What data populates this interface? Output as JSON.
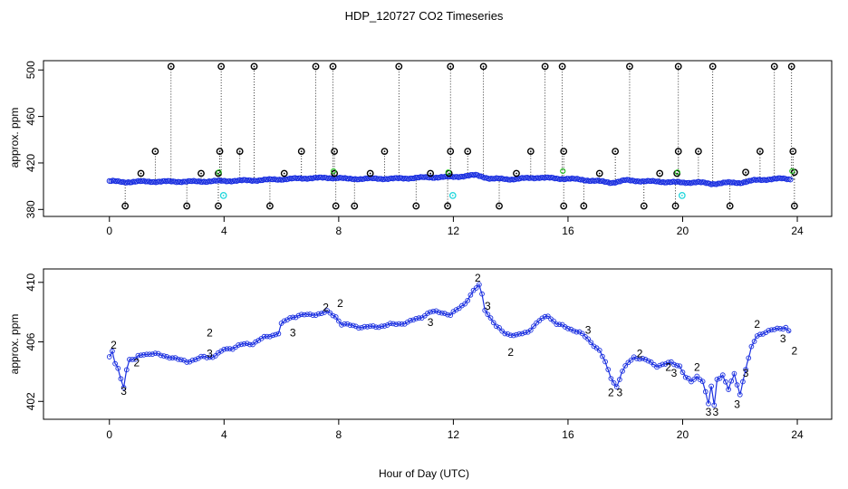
{
  "chart_data": [
    {
      "type": "scatter",
      "panel": "top",
      "title": "HDP_120727  CO2 Timeseries",
      "xlabel": "",
      "ylabel": "approx. ppm",
      "xlim": [
        -2.3,
        25.2
      ],
      "ylim": [
        374,
        508
      ],
      "xticks": [
        0,
        4,
        8,
        12,
        16,
        20,
        24
      ],
      "yticks": [
        380,
        420,
        460,
        500
      ],
      "ytick_labels": [
        "380",
        "420",
        "460",
        "500"
      ],
      "colors": {
        "series": "#1a2fe0",
        "high": "#000000",
        "low": "#000000",
        "cyan": "#22d6dc",
        "green": "#22c81e"
      },
      "baseline": [
        [
          0,
          404.5
        ],
        [
          0.5,
          403.5
        ],
        [
          1,
          404
        ],
        [
          2,
          404
        ],
        [
          3,
          404
        ],
        [
          4,
          404.5
        ],
        [
          5,
          405
        ],
        [
          6,
          406
        ],
        [
          7,
          407
        ],
        [
          8,
          407.2
        ],
        [
          8.3,
          406.2
        ],
        [
          9,
          406.5
        ],
        [
          10,
          406.5
        ],
        [
          11,
          407.5
        ],
        [
          12,
          408
        ],
        [
          12.8,
          409.5
        ],
        [
          13.3,
          406.5
        ],
        [
          14,
          406
        ],
        [
          15,
          407.5
        ],
        [
          15.7,
          406.5
        ],
        [
          16,
          406.5
        ],
        [
          17,
          404.5
        ],
        [
          17.5,
          403
        ],
        [
          18,
          405
        ],
        [
          19,
          404
        ],
        [
          19.7,
          403.5
        ],
        [
          20,
          403
        ],
        [
          20.5,
          403.5
        ],
        [
          21,
          402
        ],
        [
          21.5,
          403
        ],
        [
          22,
          403
        ],
        [
          22.5,
          405
        ],
        [
          23,
          406
        ],
        [
          23.5,
          406.5
        ],
        [
          23.8,
          406
        ]
      ],
      "high_points": [
        2.15,
        3.9,
        5.05,
        7.2,
        7.8,
        10.1,
        11.9,
        13.05,
        15.2,
        15.8,
        18.15,
        19.85,
        21.05,
        23.2,
        23.8
      ],
      "mid_points": [
        [
          1.6,
          430
        ],
        [
          3.85,
          430
        ],
        [
          4.55,
          430
        ],
        [
          6.7,
          430
        ],
        [
          7.85,
          430
        ],
        [
          9.6,
          430
        ],
        [
          11.9,
          430
        ],
        [
          12.5,
          430
        ],
        [
          14.7,
          430
        ],
        [
          15.85,
          430
        ],
        [
          17.65,
          430
        ],
        [
          19.85,
          430
        ],
        [
          20.55,
          430
        ],
        [
          22.7,
          430
        ],
        [
          23.85,
          430
        ],
        [
          1.1,
          411
        ],
        [
          3.2,
          411
        ],
        [
          3.8,
          411
        ],
        [
          6.1,
          411
        ],
        [
          7.85,
          411
        ],
        [
          9.1,
          411
        ],
        [
          11.2,
          411
        ],
        [
          11.85,
          411
        ],
        [
          14.2,
          411
        ],
        [
          17.1,
          411
        ],
        [
          19.2,
          411
        ],
        [
          19.8,
          411
        ],
        [
          22.2,
          412
        ],
        [
          23.9,
          412
        ]
      ],
      "low_points": [
        0.55,
        2.7,
        3.8,
        5.6,
        7.9,
        8.55,
        10.7,
        11.8,
        13.6,
        15.85,
        16.55,
        18.65,
        19.75,
        21.65,
        23.9
      ],
      "cyan_points": [
        [
          3.98,
          392
        ],
        [
          11.98,
          392
        ],
        [
          19.98,
          392
        ]
      ],
      "green_points": [
        [
          7.82,
          413
        ],
        [
          15.82,
          413
        ],
        [
          23.82,
          413
        ],
        [
          3.82,
          412
        ],
        [
          11.82,
          412
        ],
        [
          19.82,
          412
        ]
      ]
    },
    {
      "type": "line",
      "panel": "bottom",
      "title": "",
      "xlabel": "Hour of Day (UTC)",
      "ylabel": "approx. ppm",
      "xlim": [
        -2.3,
        25.2
      ],
      "ylim": [
        400.8,
        410.9
      ],
      "xticks": [
        0,
        4,
        8,
        12,
        16,
        20,
        24
      ],
      "xtick_labels": [
        "0",
        "4",
        "8",
        "12",
        "16",
        "20",
        "24"
      ],
      "yticks": [
        402,
        406,
        410
      ],
      "ytick_labels": [
        "402",
        "406",
        "410"
      ],
      "point_labels": [
        "2",
        "3"
      ],
      "colors": {
        "line": "#1a2fe0",
        "label2": "#22c81e",
        "label3": "#1a2fe0"
      },
      "series": [
        [
          0,
          405
        ],
        [
          0.1,
          405.3
        ],
        [
          0.2,
          404.5
        ],
        [
          0.3,
          404.2
        ],
        [
          0.4,
          403.5
        ],
        [
          0.5,
          403
        ],
        [
          0.6,
          404.2
        ],
        [
          0.7,
          404.8
        ],
        [
          0.9,
          404.8
        ],
        [
          1,
          405
        ],
        [
          1.2,
          405.2
        ],
        [
          1.5,
          405.2
        ],
        [
          1.8,
          405.1
        ],
        [
          2.1,
          405
        ],
        [
          2.4,
          404.8
        ],
        [
          2.7,
          404.7
        ],
        [
          3,
          404.8
        ],
        [
          3.3,
          405
        ],
        [
          3.6,
          405
        ],
        [
          3.9,
          405.3
        ],
        [
          4,
          405.5
        ],
        [
          4.3,
          405.6
        ],
        [
          4.6,
          405.8
        ],
        [
          5,
          405.9
        ],
        [
          5.3,
          406.2
        ],
        [
          5.6,
          406.4
        ],
        [
          5.9,
          406.6
        ],
        [
          6,
          407.2
        ],
        [
          6.3,
          407.6
        ],
        [
          6.6,
          407.8
        ],
        [
          7,
          407.8
        ],
        [
          7.3,
          407.9
        ],
        [
          7.6,
          408
        ],
        [
          7.9,
          407.7
        ],
        [
          8.1,
          407.2
        ],
        [
          8.4,
          407.1
        ],
        [
          8.8,
          407
        ],
        [
          9.2,
          407
        ],
        [
          9.6,
          407.1
        ],
        [
          10,
          407.2
        ],
        [
          10.4,
          407.3
        ],
        [
          10.8,
          407.6
        ],
        [
          11.2,
          408
        ],
        [
          11.6,
          408
        ],
        [
          11.9,
          407.8
        ],
        [
          12.1,
          408.1
        ],
        [
          12.4,
          408.6
        ],
        [
          12.7,
          409.4
        ],
        [
          12.9,
          409.8
        ],
        [
          13,
          409.2
        ],
        [
          13.1,
          408.2
        ],
        [
          13.3,
          407.6
        ],
        [
          13.5,
          407
        ],
        [
          13.8,
          406.6
        ],
        [
          14.2,
          406.4
        ],
        [
          14.6,
          406.7
        ],
        [
          15,
          407.4
        ],
        [
          15.3,
          407.8
        ],
        [
          15.6,
          407.2
        ],
        [
          15.9,
          407
        ],
        [
          16.2,
          406.8
        ],
        [
          16.5,
          406.5
        ],
        [
          16.8,
          406
        ],
        [
          17.1,
          405.4
        ],
        [
          17.3,
          404.6
        ],
        [
          17.5,
          403.6
        ],
        [
          17.7,
          403
        ],
        [
          17.9,
          404
        ],
        [
          18.1,
          404.6
        ],
        [
          18.3,
          405
        ],
        [
          18.5,
          404.9
        ],
        [
          18.8,
          404.7
        ],
        [
          19.1,
          404.4
        ],
        [
          19.4,
          404.5
        ],
        [
          19.6,
          404.6
        ],
        [
          19.9,
          404.4
        ],
        [
          20.1,
          403.6
        ],
        [
          20.3,
          403.3
        ],
        [
          20.5,
          403.7
        ],
        [
          20.7,
          403.4
        ],
        [
          20.8,
          402.6
        ],
        [
          20.9,
          401.8
        ],
        [
          21,
          403
        ],
        [
          21.1,
          401.7
        ],
        [
          21.2,
          403.5
        ],
        [
          21.4,
          403.8
        ],
        [
          21.6,
          402.8
        ],
        [
          21.8,
          403.8
        ],
        [
          22,
          402.5
        ],
        [
          22.2,
          404.2
        ],
        [
          22.4,
          405.6
        ],
        [
          22.6,
          406.4
        ],
        [
          22.9,
          406.7
        ],
        [
          23.2,
          406.8
        ],
        [
          23.6,
          407
        ],
        [
          23.8,
          406.5
        ]
      ],
      "label2_points": [
        [
          0.15,
          405.8
        ],
        [
          0.95,
          404.6
        ],
        [
          3.5,
          406.6
        ],
        [
          7.55,
          408.3
        ],
        [
          8.05,
          408.6
        ],
        [
          12.85,
          410.3
        ],
        [
          14,
          405.3
        ],
        [
          17.5,
          402.6
        ],
        [
          18.5,
          405.2
        ],
        [
          19.5,
          404.3
        ],
        [
          20.5,
          404.3
        ],
        [
          22.6,
          407.2
        ],
        [
          23.9,
          405.4
        ]
      ],
      "label3_points": [
        [
          0.5,
          402.7
        ],
        [
          3.5,
          405.2
        ],
        [
          6.4,
          406.6
        ],
        [
          11.2,
          407.3
        ],
        [
          13.2,
          408.4
        ],
        [
          16.7,
          406.8
        ],
        [
          17.8,
          402.6
        ],
        [
          19.7,
          403.9
        ],
        [
          20.9,
          401.3
        ],
        [
          21.15,
          401.3
        ],
        [
          21.9,
          401.8
        ],
        [
          22.2,
          403.9
        ],
        [
          23.5,
          406.2
        ]
      ]
    }
  ]
}
